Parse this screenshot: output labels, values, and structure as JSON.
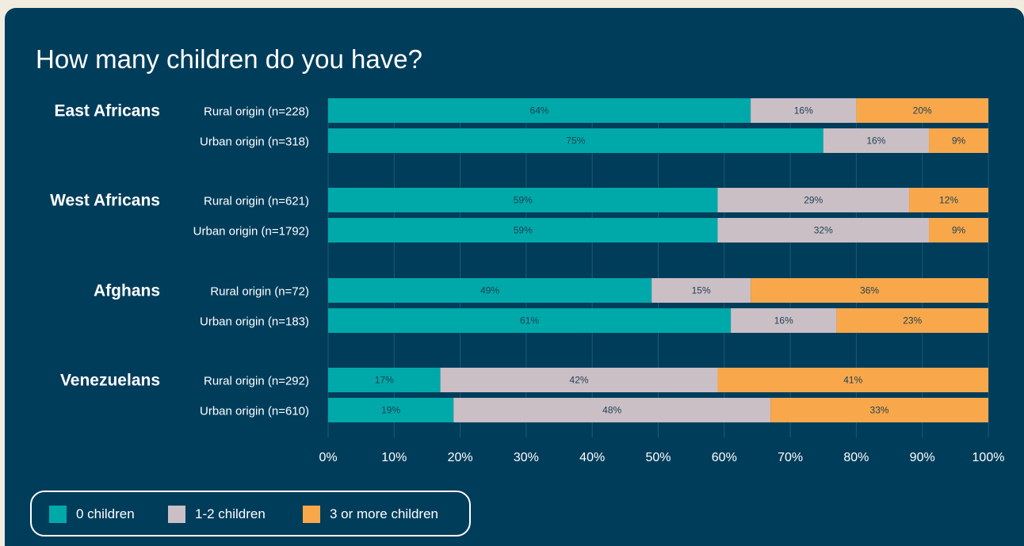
{
  "chart_data": {
    "type": "bar",
    "orientation": "horizontal",
    "stacked": true,
    "title": "How many children do you have?",
    "groups": [
      "East Africans",
      "West Africans",
      "Afghans",
      "Venezuelans"
    ],
    "categories": [
      {
        "group": "East Africans",
        "label": "Rural origin (n=228)"
      },
      {
        "group": "East Africans",
        "label": "Urban origin (n=318)"
      },
      {
        "group": "West Africans",
        "label": "Rural origin (n=621)"
      },
      {
        "group": "West Africans",
        "label": "Urban origin (n=1792)"
      },
      {
        "group": "Afghans",
        "label": "Rural origin (n=72)"
      },
      {
        "group": "Afghans",
        "label": "Urban origin (n=183)"
      },
      {
        "group": "Venezuelans",
        "label": "Rural origin (n=292)"
      },
      {
        "group": "Venezuelans",
        "label": "Urban origin (n=610)"
      }
    ],
    "series": [
      {
        "name": "0 children",
        "color": "#00a9a9",
        "values": [
          64,
          75,
          59,
          59,
          49,
          61,
          17,
          19
        ]
      },
      {
        "name": "1-2 children",
        "color": "#cbbfc6",
        "values": [
          16,
          16,
          29,
          32,
          15,
          16,
          42,
          48
        ]
      },
      {
        "name": "3 or more children",
        "color": "#f8a84b",
        "values": [
          20,
          9,
          12,
          9,
          36,
          23,
          41,
          33
        ]
      }
    ],
    "xlim": [
      0,
      100
    ],
    "xticks": [
      "0%",
      "10%",
      "20%",
      "30%",
      "40%",
      "50%",
      "60%",
      "70%",
      "80%",
      "90%",
      "100%"
    ],
    "grid": true,
    "legend_position": "bottom-left"
  },
  "colors": {
    "background": "#003d5b",
    "page": "#f1ece0",
    "gridline": "#1c5a78",
    "value_label": "#1f3f52"
  }
}
